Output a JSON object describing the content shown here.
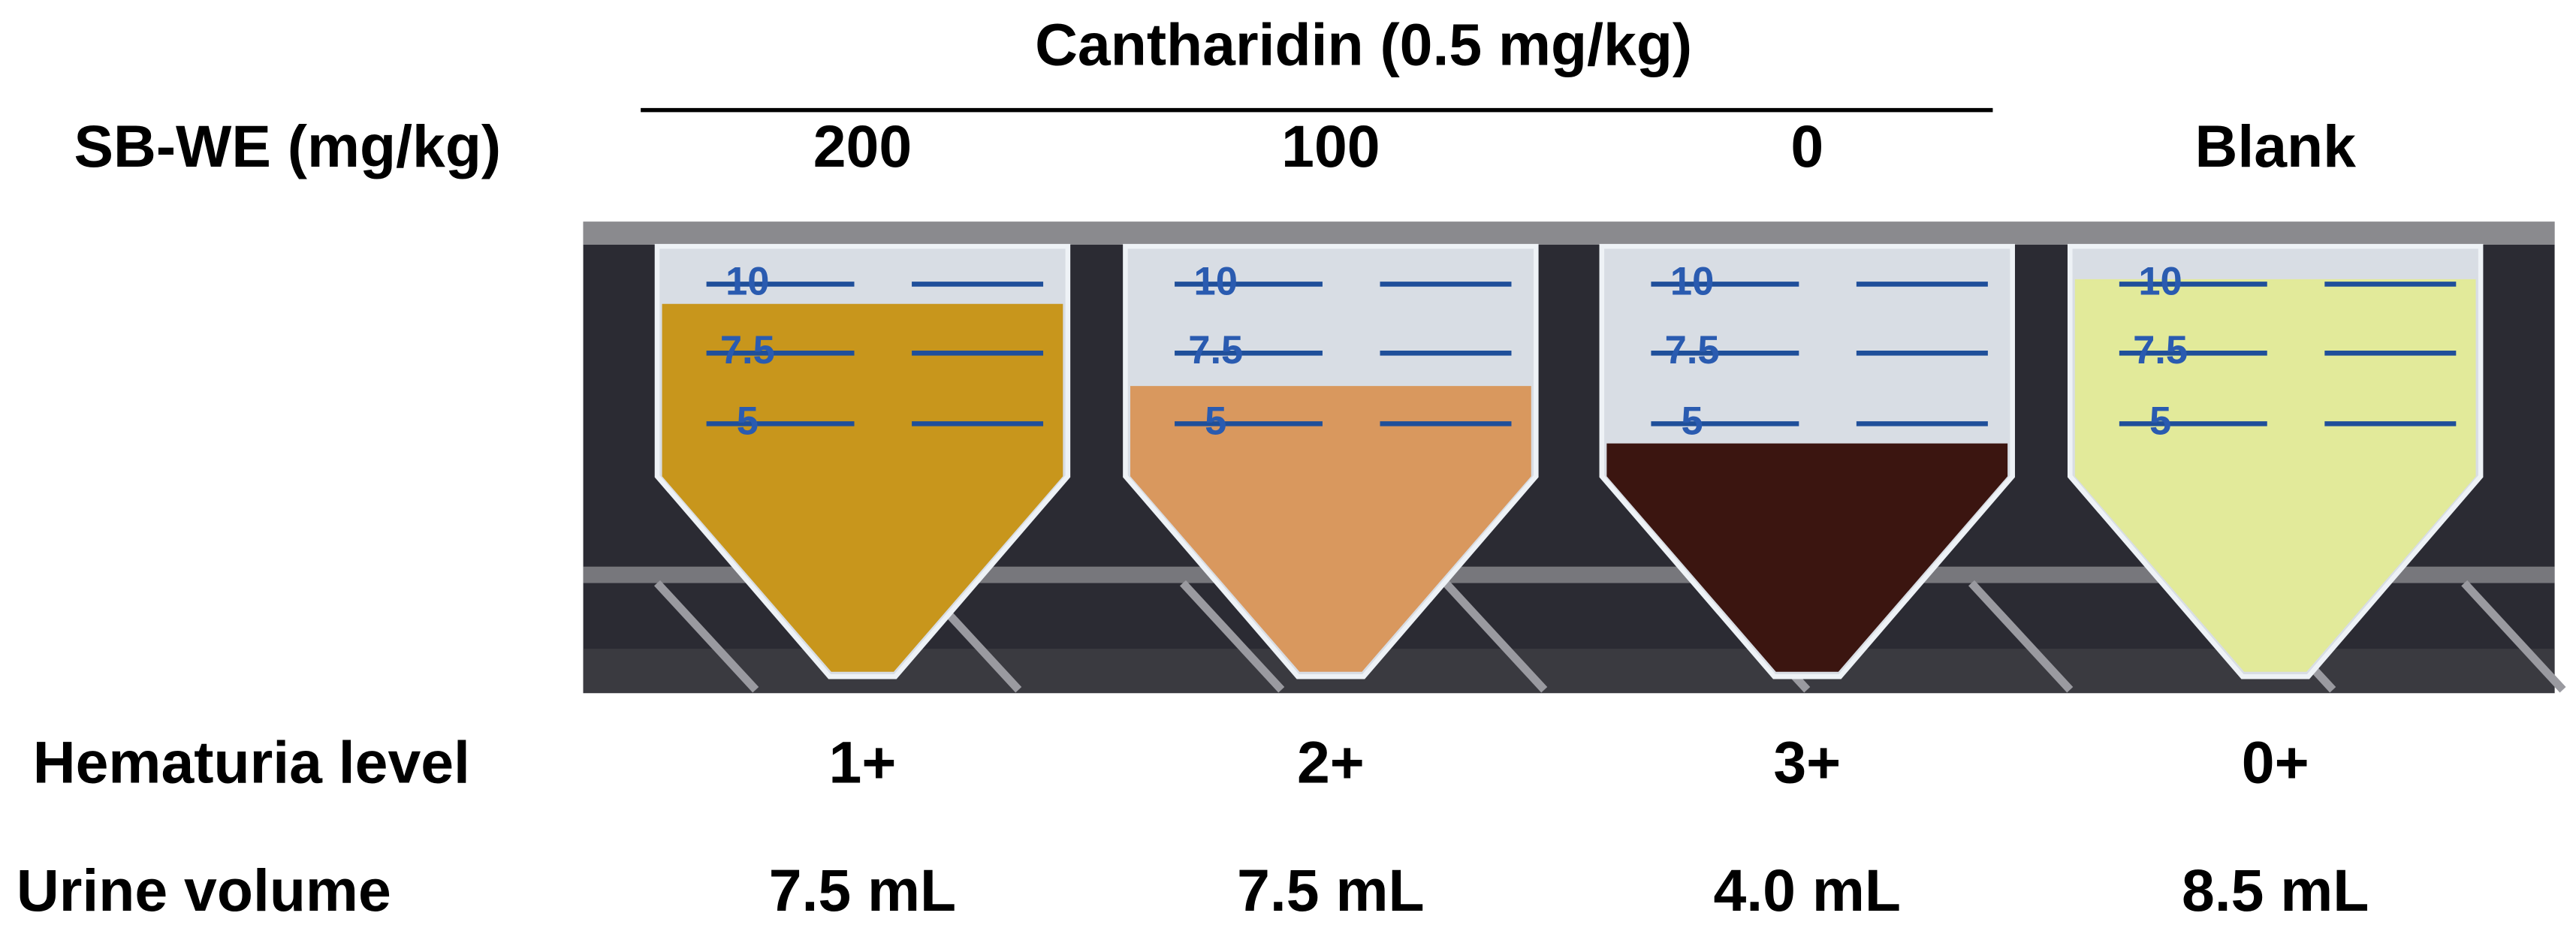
{
  "header": {
    "treatment": "Cantharidin (0.5 mg/kg)",
    "dose_label": "SB-WE (mg/kg)",
    "columns": [
      "200",
      "100",
      "0",
      "Blank"
    ]
  },
  "photo": {
    "graduations": [
      "10",
      "7.5",
      "5"
    ]
  },
  "rows": [
    {
      "label": "Hematuria level",
      "values": [
        "1+",
        "2+",
        "3+",
        "0+"
      ]
    },
    {
      "label": "Urine volume",
      "values": [
        "7.5 mL",
        "7.5 mL",
        "4.0 mL",
        "8.5 mL"
      ]
    }
  ]
}
